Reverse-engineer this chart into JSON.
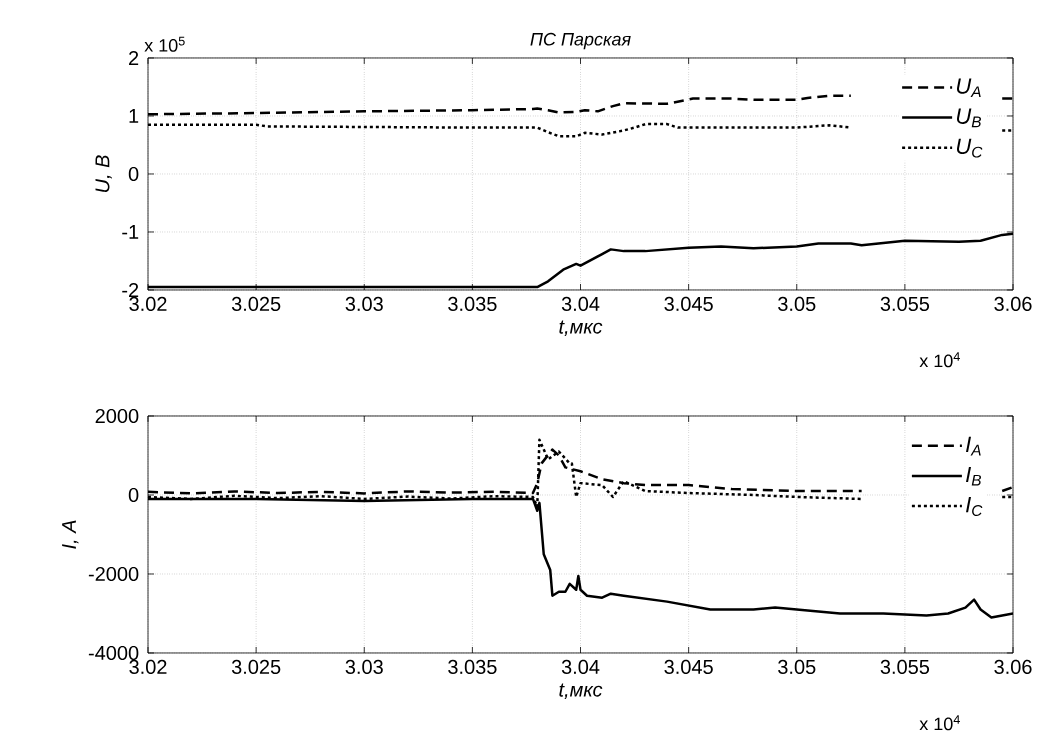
{
  "chart_data": [
    {
      "type": "line",
      "title": "ПС Парская",
      "xlabel": "t,мкс",
      "ylabel": "U, B",
      "annotations": [
        "x 10$^{5}$",
        "x 10$^{4}$"
      ],
      "xlim": [
        3.02,
        3.06
      ],
      "ylim": [
        -2,
        2
      ],
      "xticks": [
        3.02,
        3.025,
        3.03,
        3.035,
        3.04,
        3.045,
        3.05,
        3.055,
        3.06
      ],
      "yticks": [
        -2,
        -1,
        0,
        1,
        2
      ],
      "grid": true,
      "legend": "top right",
      "series": [
        {
          "name": "U$_{A}$",
          "color": "#000000",
          "line_style": "dashed",
          "x": [
            3.02,
            3.025,
            3.03,
            3.035,
            3.0378,
            3.038,
            3.0385,
            3.039,
            3.0398,
            3.0402,
            3.0408,
            3.0415,
            3.042,
            3.044,
            3.0452,
            3.047,
            3.048,
            3.05,
            3.0505,
            3.0515,
            3.0525,
            3.0526,
            3.0595,
            3.06
          ],
          "values": [
            1.03,
            1.05,
            1.08,
            1.1,
            1.12,
            1.13,
            1.1,
            1.06,
            1.07,
            1.1,
            1.08,
            1.17,
            1.22,
            1.21,
            1.3,
            1.3,
            1.28,
            1.28,
            1.31,
            1.35,
            1.35,
            null,
            1.3,
            1.3
          ]
        },
        {
          "name": "U$_{B}$",
          "color": "#000000",
          "line_style": "solid",
          "x": [
            3.02,
            3.038,
            3.0385,
            3.0392,
            3.0398,
            3.04,
            3.041,
            3.0414,
            3.042,
            3.043,
            3.045,
            3.0465,
            3.048,
            3.05,
            3.051,
            3.0525,
            3.053,
            3.055,
            3.0575,
            3.0585,
            3.0595,
            3.06
          ],
          "values": [
            -1.95,
            -1.95,
            -1.85,
            -1.65,
            -1.55,
            -1.58,
            -1.38,
            -1.3,
            -1.33,
            -1.33,
            -1.27,
            -1.25,
            -1.28,
            -1.25,
            -1.2,
            -1.2,
            -1.23,
            -1.15,
            -1.17,
            -1.15,
            -1.05,
            -1.03
          ]
        },
        {
          "name": "U$_{C}$",
          "color": "#000000",
          "line_style": "dotted",
          "x": [
            3.02,
            3.025,
            3.0255,
            3.035,
            3.038,
            3.0385,
            3.039,
            3.0398,
            3.0402,
            3.041,
            3.042,
            3.0425,
            3.043,
            3.044,
            3.0445,
            3.05,
            3.0515,
            3.0525,
            3.0526,
            3.0595,
            3.06
          ],
          "values": [
            0.85,
            0.85,
            0.82,
            0.8,
            0.8,
            0.72,
            0.65,
            0.65,
            0.71,
            0.68,
            0.75,
            0.8,
            0.86,
            0.86,
            0.8,
            0.8,
            0.84,
            0.8,
            null,
            0.75,
            0.75
          ]
        }
      ]
    },
    {
      "type": "line",
      "xlabel": "t,мкс",
      "ylabel": "I, A",
      "annotations": [
        "x 10$^{4}$"
      ],
      "xlim": [
        3.02,
        3.06
      ],
      "ylim": [
        -4000,
        2000
      ],
      "xticks": [
        3.02,
        3.025,
        3.03,
        3.035,
        3.04,
        3.045,
        3.05,
        3.055,
        3.06
      ],
      "yticks": [
        -4000,
        -2000,
        0,
        2000
      ],
      "grid": true,
      "legend": "top right",
      "series": [
        {
          "name": "I$_{A}$",
          "color": "#000000",
          "line_style": "dashed",
          "x": [
            3.02,
            3.022,
            3.024,
            3.026,
            3.028,
            3.03,
            3.032,
            3.034,
            3.036,
            3.0378,
            3.038,
            3.0382,
            3.0387,
            3.039,
            3.0393,
            3.04,
            3.041,
            3.042,
            3.043,
            3.045,
            3.047,
            3.05,
            3.053,
            3.0531,
            3.0595,
            3.06
          ],
          "values": [
            80,
            40,
            90,
            50,
            80,
            40,
            90,
            60,
            80,
            50,
            300,
            800,
            1150,
            1000,
            700,
            600,
            400,
            300,
            250,
            250,
            150,
            100,
            100,
            null,
            100,
            200
          ]
        },
        {
          "name": "I$_{B}$",
          "color": "#000000",
          "line_style": "solid",
          "x": [
            3.02,
            3.025,
            3.03,
            3.035,
            3.0378,
            3.038,
            3.0381,
            3.0383,
            3.0386,
            3.0387,
            3.039,
            3.0393,
            3.0395,
            3.0398,
            3.0399,
            3.04,
            3.0403,
            3.041,
            3.0414,
            3.042,
            3.044,
            3.045,
            3.046,
            3.048,
            3.049,
            3.05,
            3.052,
            3.054,
            3.056,
            3.057,
            3.0578,
            3.0582,
            3.0585,
            3.059,
            3.0595,
            3.06
          ],
          "values": [
            -100,
            -100,
            -150,
            -100,
            -100,
            -400,
            -200,
            -1500,
            -1900,
            -2550,
            -2450,
            -2450,
            -2250,
            -2400,
            -2050,
            -2400,
            -2550,
            -2600,
            -2500,
            -2550,
            -2700,
            -2800,
            -2900,
            -2900,
            -2850,
            -2900,
            -3000,
            -3000,
            -3050,
            -3000,
            -2850,
            -2650,
            -2900,
            -3100,
            -3050,
            -3000
          ]
        },
        {
          "name": "I$_{C}$",
          "color": "#000000",
          "line_style": "dotted",
          "x": [
            3.02,
            3.022,
            3.024,
            3.026,
            3.028,
            3.03,
            3.032,
            3.034,
            3.036,
            3.0378,
            3.038,
            3.0381,
            3.0385,
            3.039,
            3.0395,
            3.0396,
            3.0398,
            3.04,
            3.041,
            3.0415,
            3.042,
            3.043,
            3.045,
            3.048,
            3.05,
            3.053,
            3.0531,
            3.0595,
            3.06
          ],
          "values": [
            -50,
            -100,
            -20,
            -80,
            -30,
            -100,
            -40,
            -90,
            -30,
            -50,
            -300,
            1400,
            900,
            1100,
            800,
            800,
            -50,
            300,
            250,
            -50,
            350,
            100,
            50,
            0,
            -50,
            -100,
            null,
            -50,
            -50
          ]
        }
      ]
    }
  ]
}
